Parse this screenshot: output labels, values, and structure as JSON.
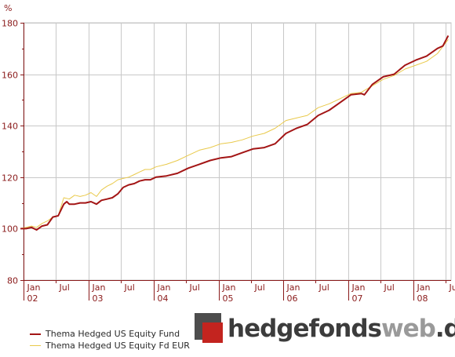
{
  "chart_data": {
    "type": "line",
    "ylabel": "%",
    "ylim": [
      80,
      180
    ],
    "yticks": [
      "80",
      "100",
      "120",
      "140",
      "160",
      "180"
    ],
    "xlim": [
      "2002-01-01",
      "2008-07-31"
    ],
    "grid": true,
    "legend_position": "bottom-left",
    "month_ticks": [
      {
        "date": "2002-01-01",
        "label": "Jan"
      },
      {
        "date": "2002-07-01",
        "label": "Jul"
      },
      {
        "date": "2003-01-01",
        "label": "Jan"
      },
      {
        "date": "2003-07-01",
        "label": "Jul"
      },
      {
        "date": "2004-01-01",
        "label": "Jan"
      },
      {
        "date": "2004-07-01",
        "label": "Jul"
      },
      {
        "date": "2005-01-01",
        "label": "Jan"
      },
      {
        "date": "2005-07-01",
        "label": "Jul"
      },
      {
        "date": "2006-01-01",
        "label": "Jan"
      },
      {
        "date": "2006-07-01",
        "label": "Jul"
      },
      {
        "date": "2007-01-01",
        "label": "Jan"
      },
      {
        "date": "2007-07-01",
        "label": "Jul"
      },
      {
        "date": "2008-01-01",
        "label": "Jan"
      },
      {
        "date": "2008-07-01",
        "label": "Jul"
      }
    ],
    "year_ticks": [
      {
        "date": "2002-01-01",
        "label": "02"
      },
      {
        "date": "2003-01-01",
        "label": "03"
      },
      {
        "date": "2004-01-01",
        "label": "04"
      },
      {
        "date": "2005-01-01",
        "label": "05"
      },
      {
        "date": "2006-01-01",
        "label": "06"
      },
      {
        "date": "2007-01-01",
        "label": "07"
      },
      {
        "date": "2008-01-01",
        "label": "08"
      }
    ],
    "series": [
      {
        "name": "Thema Hedged US Equity Fund",
        "color": "#a31515",
        "points": [
          [
            "2001-12-15",
            100
          ],
          [
            "2002-01-15",
            100
          ],
          [
            "2002-02-15",
            100.5
          ],
          [
            "2002-03-15",
            99.5
          ],
          [
            "2002-04-15",
            101
          ],
          [
            "2002-05-15",
            101.5
          ],
          [
            "2002-06-15",
            104.5
          ],
          [
            "2002-07-15",
            105
          ],
          [
            "2002-08-15",
            109.5
          ],
          [
            "2002-09-01",
            110.5
          ],
          [
            "2002-09-15",
            109.5
          ],
          [
            "2002-10-15",
            109.5
          ],
          [
            "2002-11-15",
            110
          ],
          [
            "2002-12-15",
            110
          ],
          [
            "2003-01-15",
            110.5
          ],
          [
            "2003-02-15",
            109.5
          ],
          [
            "2003-03-15",
            111
          ],
          [
            "2003-04-15",
            111.5
          ],
          [
            "2003-05-15",
            112
          ],
          [
            "2003-06-15",
            113.5
          ],
          [
            "2003-07-15",
            116
          ],
          [
            "2003-08-15",
            117
          ],
          [
            "2003-09-15",
            117.5
          ],
          [
            "2003-10-15",
            118.5
          ],
          [
            "2003-11-15",
            119
          ],
          [
            "2003-12-15",
            119
          ],
          [
            "2004-01-15",
            120
          ],
          [
            "2004-03-15",
            120.5
          ],
          [
            "2004-05-15",
            121.5
          ],
          [
            "2004-07-15",
            123.5
          ],
          [
            "2004-09-15",
            125
          ],
          [
            "2004-11-15",
            126.5
          ],
          [
            "2005-01-15",
            127.5
          ],
          [
            "2005-03-15",
            128
          ],
          [
            "2005-05-15",
            129.5
          ],
          [
            "2005-07-15",
            131
          ],
          [
            "2005-09-15",
            131.5
          ],
          [
            "2005-11-15",
            133
          ],
          [
            "2006-01-15",
            137
          ],
          [
            "2006-03-15",
            139
          ],
          [
            "2006-05-15",
            140.5
          ],
          [
            "2006-07-15",
            144
          ],
          [
            "2006-09-15",
            146
          ],
          [
            "2006-11-15",
            149
          ],
          [
            "2007-01-15",
            152
          ],
          [
            "2007-03-15",
            152.5
          ],
          [
            "2007-04-01",
            152
          ],
          [
            "2007-05-15",
            156
          ],
          [
            "2007-07-15",
            159
          ],
          [
            "2007-09-15",
            160
          ],
          [
            "2007-11-15",
            163.5
          ],
          [
            "2008-01-15",
            165.5
          ],
          [
            "2008-03-15",
            167
          ],
          [
            "2008-05-15",
            170
          ],
          [
            "2008-06-15",
            171
          ],
          [
            "2008-07-15",
            175
          ]
        ]
      },
      {
        "name": "Thema Hedged US Equity Fd EUR",
        "color": "#e9c94a",
        "points": [
          [
            "2001-12-15",
            100
          ],
          [
            "2002-01-15",
            100.5
          ],
          [
            "2002-02-15",
            101
          ],
          [
            "2002-03-15",
            100.5
          ],
          [
            "2002-04-15",
            102
          ],
          [
            "2002-05-15",
            103
          ],
          [
            "2002-06-15",
            104.5
          ],
          [
            "2002-07-15",
            105
          ],
          [
            "2002-08-15",
            112
          ],
          [
            "2002-09-15",
            111.5
          ],
          [
            "2002-10-15",
            113
          ],
          [
            "2002-11-15",
            112.5
          ],
          [
            "2002-12-15",
            113
          ],
          [
            "2003-01-15",
            114
          ],
          [
            "2003-02-15",
            112.5
          ],
          [
            "2003-03-15",
            115
          ],
          [
            "2003-04-15",
            116.5
          ],
          [
            "2003-05-15",
            117.5
          ],
          [
            "2003-06-15",
            119
          ],
          [
            "2003-07-15",
            119.5
          ],
          [
            "2003-08-15",
            120
          ],
          [
            "2003-09-15",
            121
          ],
          [
            "2003-10-15",
            122
          ],
          [
            "2003-11-15",
            123
          ],
          [
            "2003-12-15",
            123
          ],
          [
            "2004-01-15",
            124
          ],
          [
            "2004-03-15",
            125
          ],
          [
            "2004-05-15",
            126.5
          ],
          [
            "2004-07-15",
            128.5
          ],
          [
            "2004-09-15",
            130.5
          ],
          [
            "2004-11-15",
            131.5
          ],
          [
            "2005-01-15",
            133
          ],
          [
            "2005-03-15",
            133.5
          ],
          [
            "2005-05-15",
            134.5
          ],
          [
            "2005-07-15",
            136
          ],
          [
            "2005-09-15",
            137
          ],
          [
            "2005-11-15",
            139
          ],
          [
            "2006-01-15",
            142
          ],
          [
            "2006-03-15",
            143
          ],
          [
            "2006-05-15",
            144
          ],
          [
            "2006-07-15",
            147
          ],
          [
            "2006-09-15",
            148.5
          ],
          [
            "2006-11-15",
            150.5
          ],
          [
            "2007-01-15",
            152.5
          ],
          [
            "2007-03-15",
            153
          ],
          [
            "2007-05-15",
            155.5
          ],
          [
            "2007-07-15",
            158
          ],
          [
            "2007-09-15",
            159.5
          ],
          [
            "2007-11-15",
            162
          ],
          [
            "2008-01-15",
            163.5
          ],
          [
            "2008-03-15",
            165
          ],
          [
            "2008-05-15",
            168
          ],
          [
            "2008-07-15",
            173.5
          ]
        ]
      }
    ]
  },
  "logo": {
    "part1": "hedgefonds",
    "part2": "web",
    "part3": ".de"
  }
}
